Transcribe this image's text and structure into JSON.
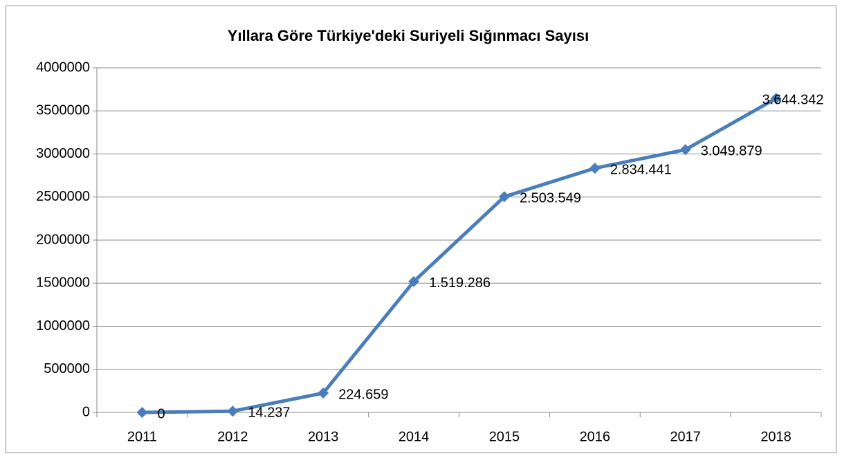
{
  "chart_data": {
    "type": "line",
    "title": "Yıllara Göre Türkiye'deki Suriyeli Sığınmacı Sayısı",
    "categories": [
      "2011",
      "2012",
      "2013",
      "2014",
      "2015",
      "2016",
      "2017",
      "2018"
    ],
    "values": [
      0,
      14237,
      224659,
      1519286,
      2503549,
      2834441,
      3049879,
      3644342
    ],
    "value_labels": [
      "0",
      "14.237",
      "224.659",
      "1.519.286",
      "2.503.549",
      "2.834.441",
      "3.049.879",
      "3.644.342"
    ],
    "color": "#4a7ebb",
    "ylim": [
      0,
      4000000
    ],
    "yticks": [
      0,
      500000,
      1000000,
      1500000,
      2000000,
      2500000,
      3000000,
      3500000,
      4000000
    ],
    "grid": true
  }
}
